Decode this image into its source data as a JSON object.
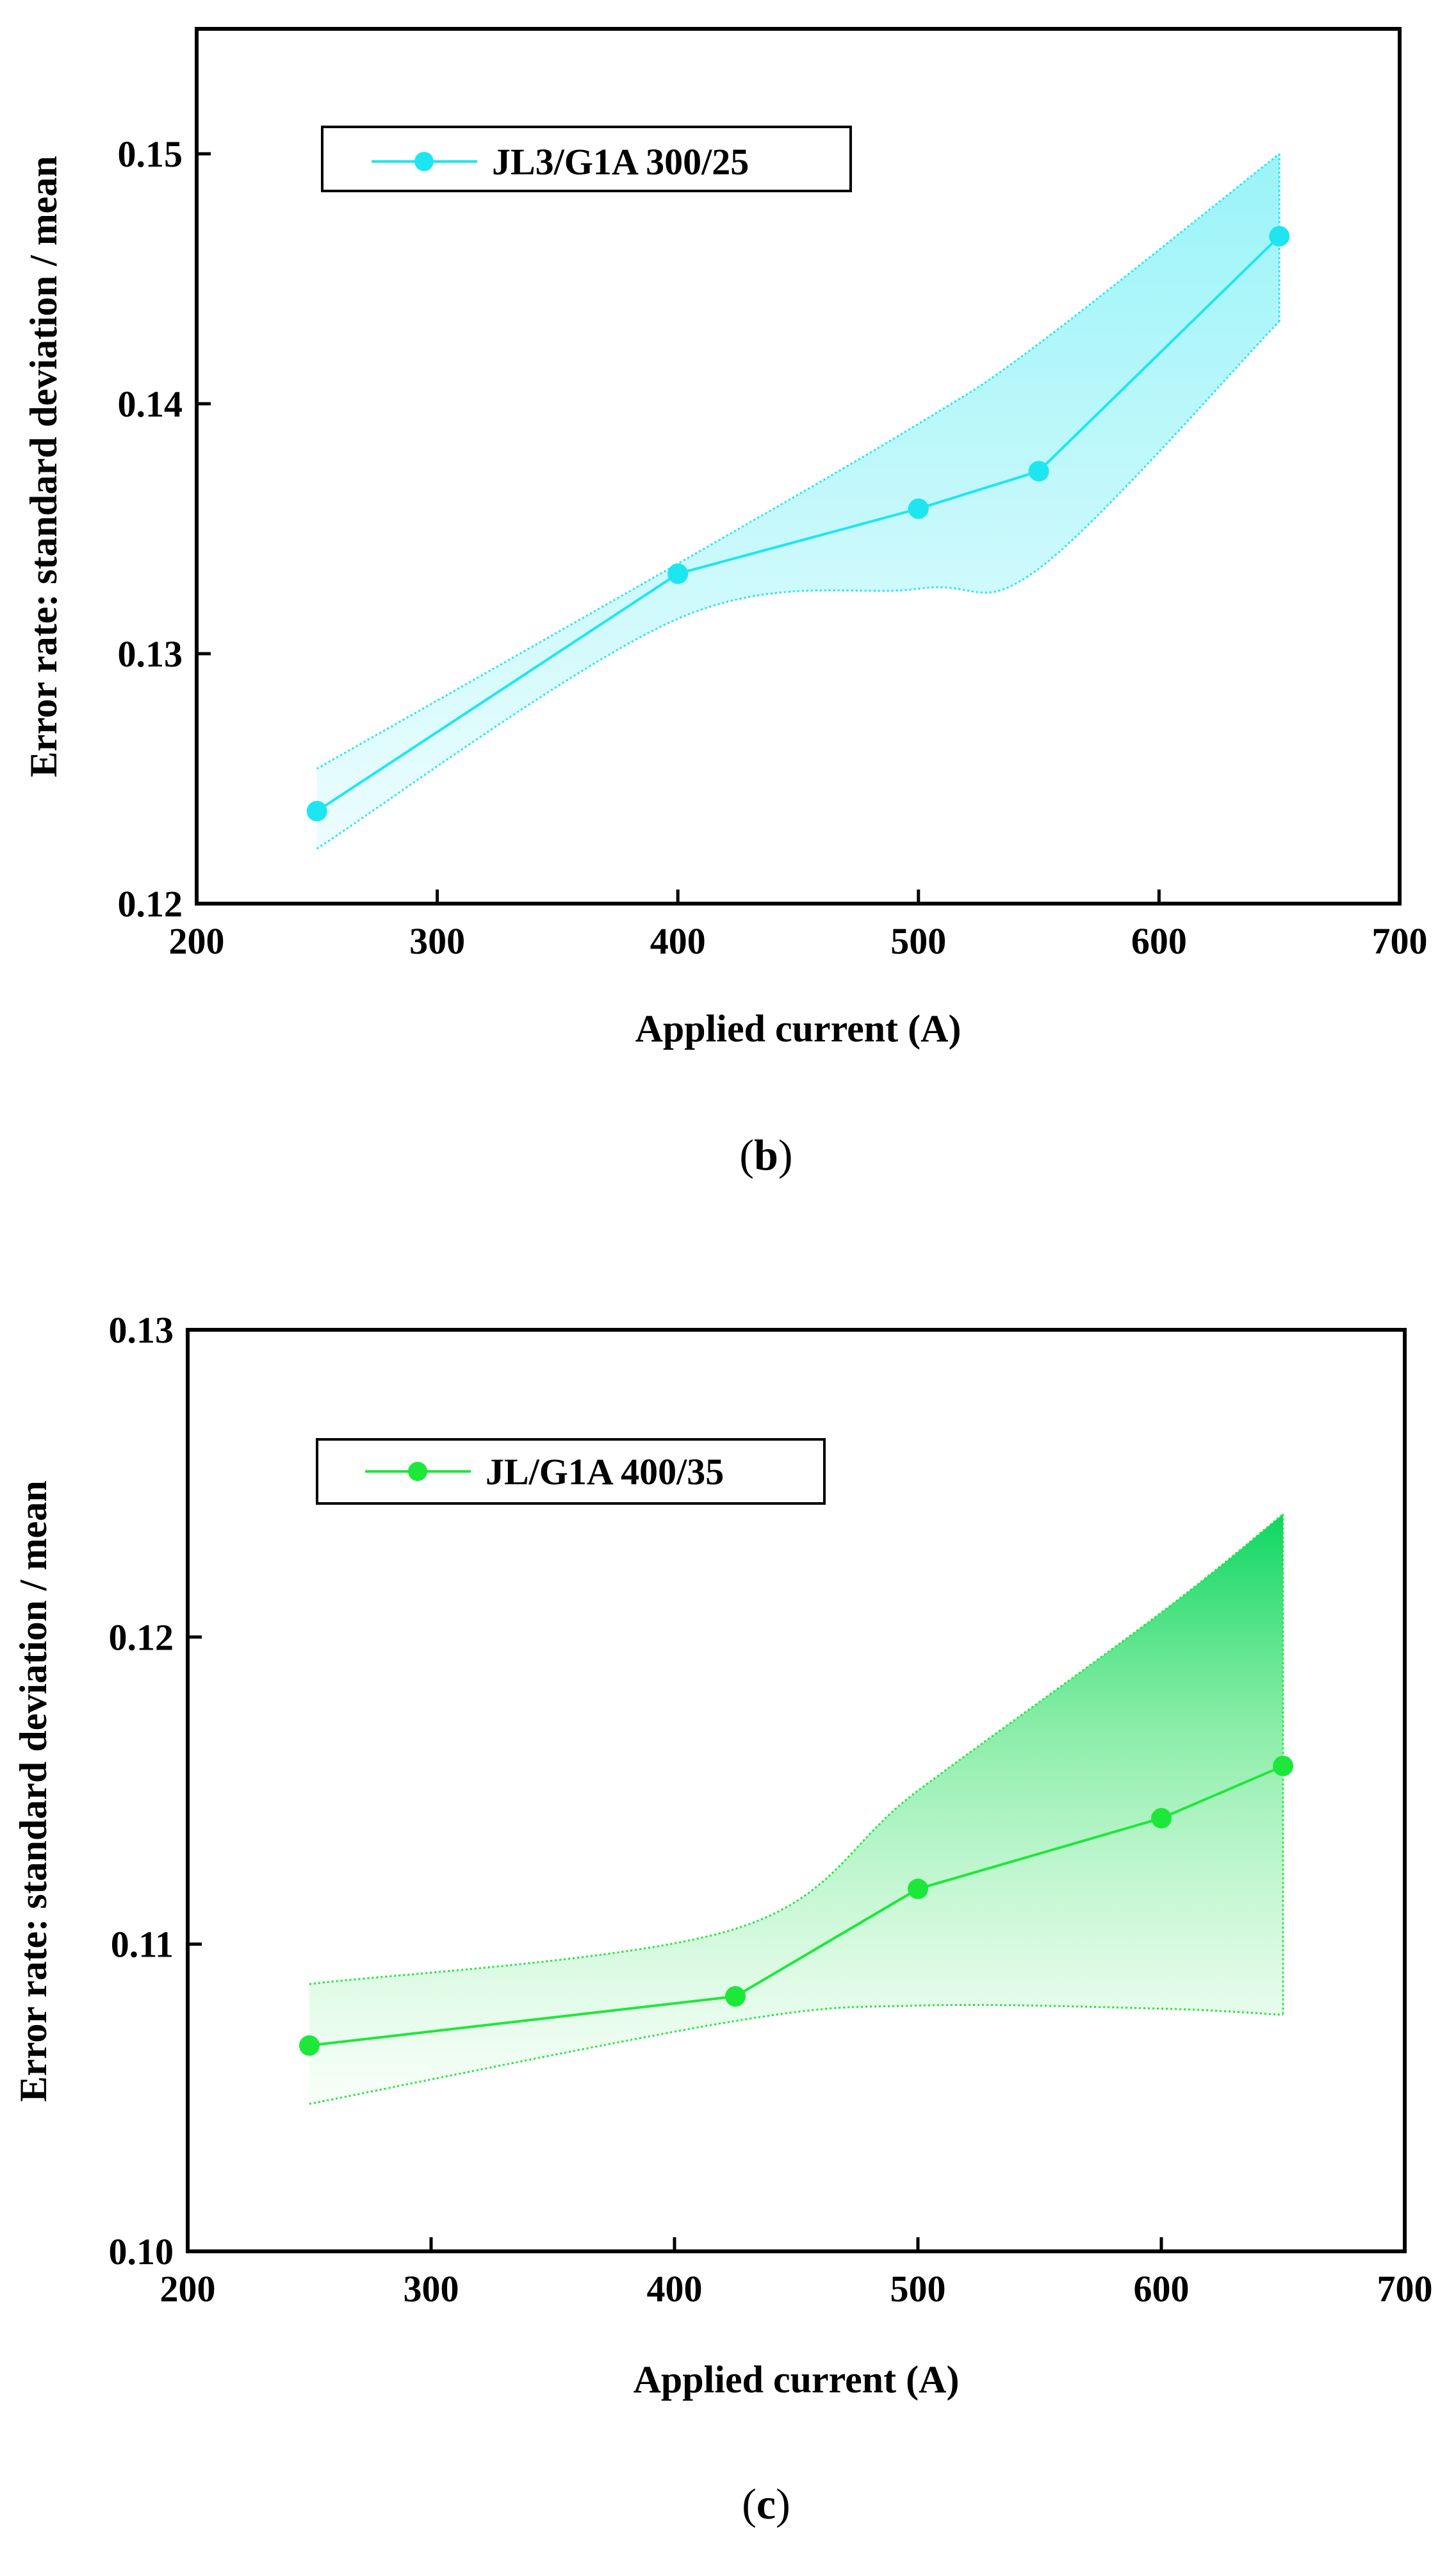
{
  "chart_data": [
    {
      "type": "line",
      "panel": "b",
      "caption_letter": "b",
      "xlabel": "Applied current (A)",
      "ylabel": "Error rate: standard deviation / mean",
      "xlim": [
        200,
        700
      ],
      "ylim": [
        0.12,
        0.155
      ],
      "xticks": [
        200,
        300,
        400,
        500,
        600,
        700
      ],
      "yticks": [
        0.12,
        0.13,
        0.14,
        0.15
      ],
      "ytick_labels": [
        "0.12",
        "0.13",
        "0.14",
        "0.15"
      ],
      "legend_position": "top-left",
      "series": [
        {
          "name": "JL3/G1A 300/25",
          "color": "#1ee6f0",
          "x": [
            250,
            400,
            500,
            550,
            650
          ],
          "values": [
            0.1237,
            0.1332,
            0.1358,
            0.1373,
            0.1467
          ],
          "band_upper": [
            0.1254,
            0.1336,
            0.1392,
            0.1424,
            0.15
          ],
          "band_lower": [
            0.1222,
            0.1314,
            0.1326,
            0.1334,
            0.1433
          ]
        }
      ]
    },
    {
      "type": "line",
      "panel": "c",
      "caption_letter": "c",
      "xlabel": "Applied current (A)",
      "ylabel": "Error rate: standard deviation / mean",
      "xlim": [
        200,
        700
      ],
      "ylim": [
        0.1,
        0.13
      ],
      "xticks": [
        200,
        300,
        400,
        500,
        600,
        700
      ],
      "yticks": [
        0.1,
        0.11,
        0.12,
        0.13
      ],
      "ytick_labels": [
        "0.10",
        "0.11",
        "0.12",
        "0.13"
      ],
      "legend_position": "top-left",
      "series": [
        {
          "name": "JL/G1A 400/35",
          "color": "#1de83a",
          "x": [
            250,
            425,
            500,
            600,
            650
          ],
          "values": [
            0.1067,
            0.1083,
            0.1118,
            0.1141,
            0.1158
          ],
          "band_upper": [
            0.1087,
            0.1105,
            0.115,
            0.1208,
            0.124
          ],
          "band_lower": [
            0.1048,
            0.1075,
            0.108,
            0.1079,
            0.1077
          ]
        }
      ]
    }
  ]
}
